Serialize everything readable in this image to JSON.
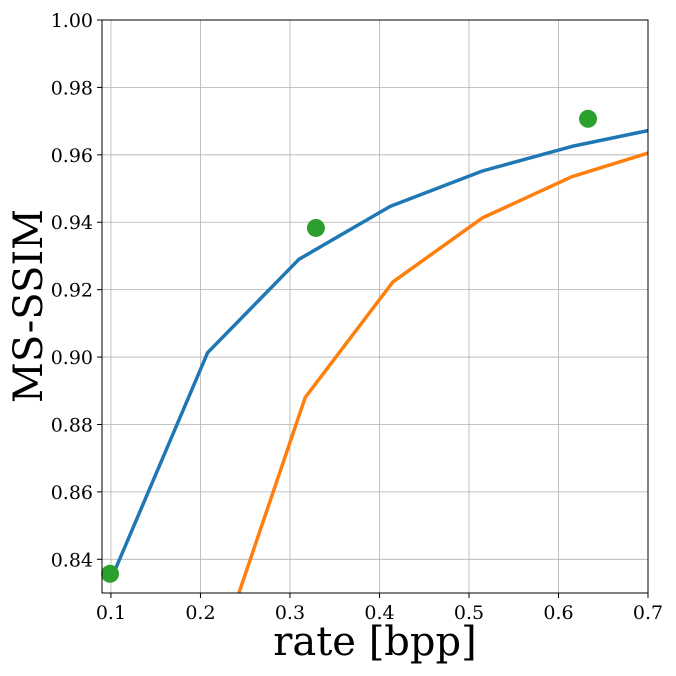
{
  "chart_data": {
    "type": "line",
    "title": "",
    "xlabel": "rate [bpp]",
    "ylabel": "MS-SSIM",
    "xlim": [
      0.09,
      0.7
    ],
    "ylim": [
      0.83,
      1.0
    ],
    "x_ticks": [
      0.1,
      0.2,
      0.3,
      0.4,
      0.5,
      0.6,
      0.7
    ],
    "x_tick_labels": [
      "0.1",
      "0.2",
      "0.3",
      "0.4",
      "0.5",
      "0.6",
      "0.7"
    ],
    "y_ticks": [
      0.84,
      0.86,
      0.88,
      0.9,
      0.92,
      0.94,
      0.96,
      0.98,
      1.0
    ],
    "y_tick_labels": [
      "0.84",
      "0.86",
      "0.88",
      "0.90",
      "0.92",
      "0.94",
      "0.96",
      "0.98",
      "1.00"
    ],
    "grid": true,
    "legend": "none",
    "series": [
      {
        "kind": "line",
        "color": "#1f77b4",
        "x": [
          0.1,
          0.208,
          0.31,
          0.412,
          0.515,
          0.615,
          0.7
        ],
        "y": [
          0.834,
          0.9013,
          0.929,
          0.9447,
          0.9552,
          0.9625,
          0.9672
        ]
      },
      {
        "kind": "line",
        "color": "#ff7f0e",
        "x": [
          0.243,
          0.317,
          0.415,
          0.515,
          0.615,
          0.7
        ],
        "y": [
          0.83,
          0.888,
          0.9223,
          0.9413,
          0.9535,
          0.9605
        ]
      },
      {
        "kind": "scatter",
        "color": "#2ca02c",
        "x": [
          0.099,
          0.329,
          0.633
        ],
        "y": [
          0.8357,
          0.9383,
          0.9707
        ]
      }
    ]
  }
}
